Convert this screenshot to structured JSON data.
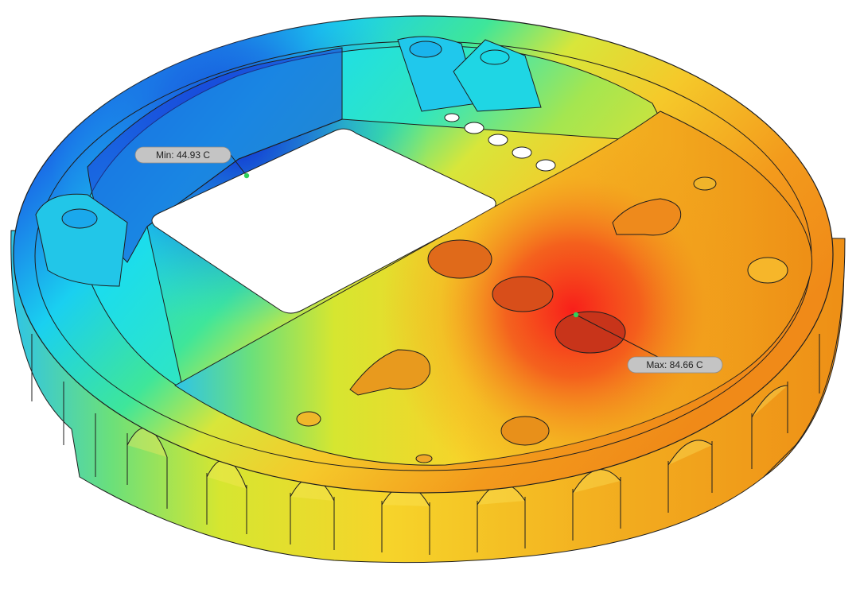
{
  "viewport": {
    "background": "#ffffff"
  },
  "thermal_result": {
    "min_probe": {
      "label": "Min: 44.93 C",
      "value": 44.93,
      "unit": "C"
    },
    "max_probe": {
      "label": "Max: 84.66 C",
      "value": 84.66,
      "unit": "C"
    }
  },
  "colors": {
    "cold": "#1a2fd8",
    "cool": "#1ad0f0",
    "mid_green": "#55e07a",
    "warm": "#f2e02a",
    "hot_orange": "#f39a1c",
    "hot": "#f22a1c",
    "probe_marker": "#2ed15a",
    "label_fill": "#c4c4c4",
    "edge_line": "#1e1e1e"
  }
}
